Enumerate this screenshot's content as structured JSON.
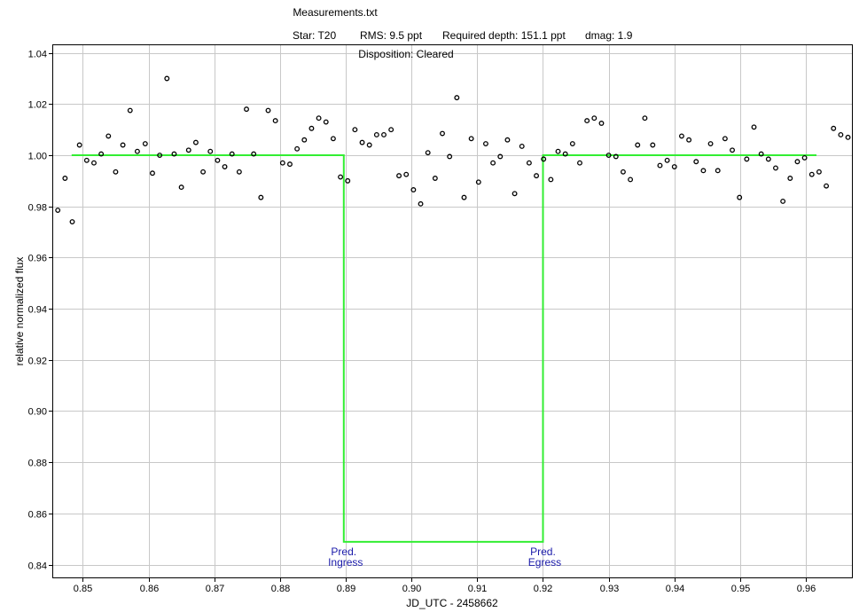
{
  "chart_data": {
    "type": "scatter",
    "title": "Measurements.txt",
    "subtitle_parts": {
      "star": "Star: T20",
      "rms": "RMS: 9.5 ppt",
      "depth": "Required depth: 151.1 ppt",
      "dmag": "dmag: 1.9"
    },
    "disposition": "Disposition: Cleared",
    "xlabel": "JD_UTC - 2458662",
    "ylabel": "relative normalized flux",
    "xlim": [
      0.8455,
      0.967
    ],
    "ylim": [
      0.835,
      1.043
    ],
    "grid": true,
    "xticks": [
      0.85,
      0.86,
      0.87,
      0.88,
      0.89,
      0.9,
      0.91,
      0.92,
      0.93,
      0.94,
      0.95,
      0.96
    ],
    "xtick_labels": [
      "0.85",
      "0.86",
      "0.87",
      "0.88",
      "0.89",
      "0.90",
      "0.91",
      "0.92",
      "0.93",
      "0.94",
      "0.95",
      "0.96"
    ],
    "yticks": [
      0.84,
      0.86,
      0.88,
      0.9,
      0.92,
      0.94,
      0.96,
      0.98,
      1.0,
      1.02,
      1.04
    ],
    "ytick_labels": [
      "0.84",
      "0.86",
      "0.88",
      "0.90",
      "0.92",
      "0.94",
      "0.96",
      "0.98",
      "1.00",
      "1.02",
      "1.04"
    ],
    "series": [
      {
        "kind": "points",
        "marker_color": "#000000",
        "x": [
          0.8462,
          0.8473,
          0.8484,
          0.8495,
          0.8506,
          0.8517,
          0.8528,
          0.8539,
          0.855,
          0.8561,
          0.8572,
          0.8583,
          0.8595,
          0.8606,
          0.8617,
          0.8628,
          0.8639,
          0.865,
          0.8661,
          0.8672,
          0.8683,
          0.8694,
          0.8705,
          0.8716,
          0.8727,
          0.8738,
          0.8749,
          0.876,
          0.8771,
          0.8782,
          0.8793,
          0.8804,
          0.8815,
          0.8826,
          0.8837,
          0.8848,
          0.8859,
          0.887,
          0.8881,
          0.8892,
          0.8903,
          0.8914,
          0.8925,
          0.8936,
          0.8947,
          0.8958,
          0.8969,
          0.8981,
          0.8992,
          0.9003,
          0.9014,
          0.9025,
          0.9036,
          0.9047,
          0.9058,
          0.9069,
          0.908,
          0.9091,
          0.9102,
          0.9113,
          0.9124,
          0.9135,
          0.9146,
          0.9157,
          0.9168,
          0.9179,
          0.919,
          0.9201,
          0.9212,
          0.9223,
          0.9234,
          0.9245,
          0.9256,
          0.9267,
          0.9278,
          0.9289,
          0.93,
          0.9311,
          0.9322,
          0.9333,
          0.9344,
          0.9355,
          0.9367,
          0.9378,
          0.9389,
          0.94,
          0.9411,
          0.9422,
          0.9433,
          0.9444,
          0.9455,
          0.9466,
          0.9477,
          0.9488,
          0.9499,
          0.951,
          0.9521,
          0.9532,
          0.9543,
          0.9554,
          0.9565,
          0.9576,
          0.9587,
          0.9598,
          0.9609,
          0.962,
          0.9631,
          0.9642,
          0.9653,
          0.9664
        ],
        "y": [
          0.9785,
          0.991,
          0.974,
          1.004,
          0.998,
          0.997,
          1.0005,
          1.0075,
          0.9935,
          1.004,
          1.0175,
          1.0015,
          1.0045,
          0.993,
          1.0,
          1.03,
          1.0005,
          0.9875,
          1.002,
          1.005,
          0.9935,
          1.0015,
          0.998,
          0.9955,
          1.0005,
          0.9935,
          1.018,
          1.0005,
          0.9835,
          1.0175,
          1.0135,
          0.997,
          0.9965,
          1.0025,
          1.006,
          1.0105,
          1.0145,
          1.013,
          1.0065,
          0.9915,
          0.99,
          1.01,
          1.005,
          1.004,
          1.008,
          1.008,
          1.01,
          0.992,
          0.9925,
          0.9865,
          0.981,
          1.001,
          0.991,
          1.0085,
          0.9995,
          1.0225,
          0.9835,
          1.0065,
          0.9895,
          1.0045,
          0.997,
          0.9995,
          1.006,
          0.985,
          1.0035,
          0.997,
          0.992,
          0.9985,
          0.9905,
          1.0015,
          1.0005,
          1.0045,
          0.997,
          1.0135,
          1.0145,
          1.0125,
          1.0,
          0.9995,
          0.9935,
          0.9905,
          1.004,
          1.0145,
          1.004,
          0.996,
          0.998,
          0.9955,
          1.0075,
          1.006,
          0.9975,
          0.994,
          1.0045,
          0.994,
          1.0065,
          1.002,
          0.9835,
          0.9985,
          1.011,
          1.0005,
          0.9985,
          0.995,
          0.982,
          0.991,
          0.9975,
          0.999,
          0.9925,
          0.9935,
          0.988,
          1.0105,
          1.008,
          1.007
        ]
      },
      {
        "kind": "model",
        "line_color": "#33ee33",
        "x": [
          0.8483,
          0.8897,
          0.8897,
          0.92,
          0.92,
          0.9616
        ],
        "y": [
          1.0,
          1.0,
          0.8489,
          0.8489,
          1.0,
          1.0
        ]
      }
    ],
    "annotations": [
      {
        "text_line1": "Pred.",
        "text_line2": "Ingress",
        "x": 0.8897
      },
      {
        "text_line1": "Pred.",
        "text_line2": "Egress",
        "x": 0.92
      }
    ]
  }
}
